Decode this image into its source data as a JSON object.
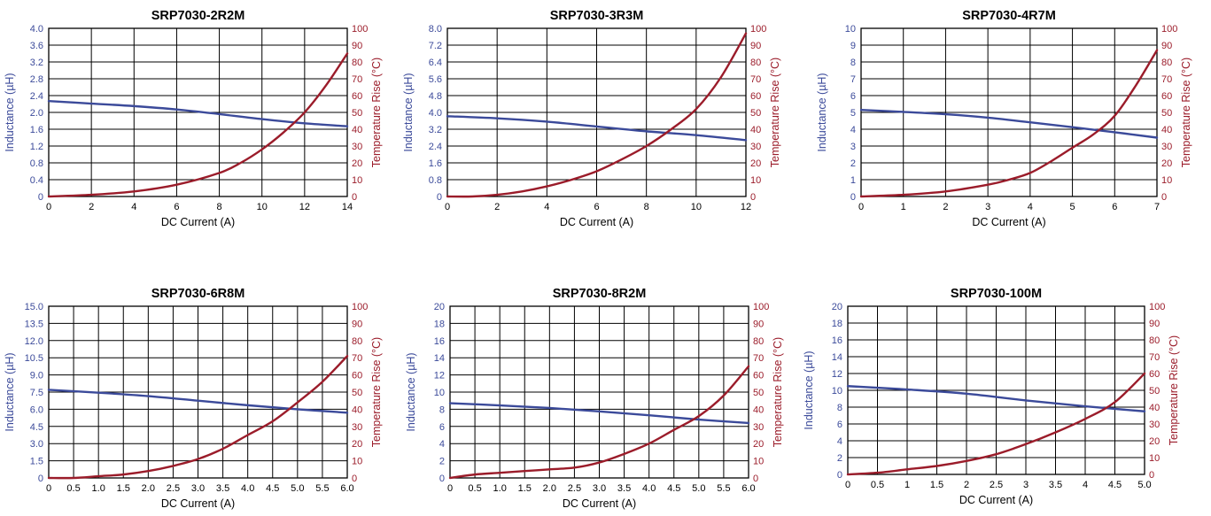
{
  "colors": {
    "inductance": "#3b4a9a",
    "temperature": "#9b1c2a",
    "grid": "#000000"
  },
  "chart_data": [
    {
      "type": "line",
      "title": "SRP7030-2R2M",
      "xlabel": "DC Current (A)",
      "ylabel": "Inductance (µH)",
      "y2label": "Temperature Rise (°C)",
      "xlim": [
        0,
        14
      ],
      "ylim": [
        0,
        4.0
      ],
      "y2lim": [
        0,
        100
      ],
      "xticks": [
        "0",
        "2",
        "4",
        "6",
        "8",
        "10",
        "12",
        "14"
      ],
      "yticks": [
        "0",
        "0.4",
        "0.8",
        "1.2",
        "1.6",
        "2.0",
        "2.4",
        "2.8",
        "3.2",
        "3.6",
        "4.0"
      ],
      "y2ticks": [
        "0",
        "10",
        "20",
        "30",
        "40",
        "50",
        "60",
        "70",
        "80",
        "90",
        "100"
      ],
      "grid": true,
      "series": [
        {
          "axis": "left",
          "color": "#3b4a9a",
          "x": [
            0,
            2,
            4,
            6,
            8,
            10,
            12,
            14
          ],
          "y": [
            2.27,
            2.21,
            2.15,
            2.07,
            1.96,
            1.84,
            1.74,
            1.67
          ]
        },
        {
          "axis": "right",
          "color": "#9b1c2a",
          "x": [
            0,
            2,
            4,
            6,
            8,
            9,
            10,
            11,
            12,
            13,
            14
          ],
          "y": [
            0,
            1,
            3,
            7,
            14,
            20,
            28,
            38,
            50,
            66,
            85
          ]
        }
      ]
    },
    {
      "type": "line",
      "title": "SRP7030-3R3M",
      "xlabel": "DC Current (A)",
      "ylabel": "Inductance (µH)",
      "y2label": "Temperature Rise (°C)",
      "xlim": [
        0,
        12
      ],
      "ylim": [
        0,
        8.0
      ],
      "y2lim": [
        0,
        100
      ],
      "xticks": [
        "0",
        "2",
        "4",
        "6",
        "8",
        "10",
        "12"
      ],
      "yticks": [
        "0",
        "0.8",
        "1.6",
        "2.4",
        "3.2",
        "4.0",
        "4.8",
        "5.6",
        "6.4",
        "7.2",
        "8.0"
      ],
      "y2ticks": [
        "0",
        "10",
        "20",
        "30",
        "40",
        "50",
        "60",
        "70",
        "80",
        "90",
        "100"
      ],
      "grid": true,
      "series": [
        {
          "axis": "left",
          "color": "#3b4a9a",
          "x": [
            0,
            2,
            4,
            6,
            8,
            10,
            12
          ],
          "y": [
            3.82,
            3.72,
            3.56,
            3.33,
            3.1,
            2.92,
            2.68
          ]
        },
        {
          "axis": "right",
          "color": "#9b1c2a",
          "x": [
            0,
            1,
            2,
            3,
            4,
            5,
            6,
            7,
            8,
            9,
            10,
            11,
            12
          ],
          "y": [
            0,
            0,
            1,
            3,
            6,
            10,
            15,
            22,
            30,
            40,
            52,
            71,
            97
          ]
        }
      ]
    },
    {
      "type": "line",
      "title": "SRP7030-4R7M",
      "xlabel": "DC Current (A)",
      "ylabel": "Inductance (µH)",
      "y2label": "Temperature Rise (°C)",
      "xlim": [
        0,
        7
      ],
      "ylim": [
        0,
        10
      ],
      "y2lim": [
        0,
        100
      ],
      "xticks": [
        "0",
        "1",
        "2",
        "3",
        "4",
        "5",
        "6",
        "7"
      ],
      "yticks": [
        "0",
        "1",
        "2",
        "3",
        "4",
        "5",
        "6",
        "7",
        "8",
        "9",
        "10"
      ],
      "y2ticks": [
        "0",
        "10",
        "20",
        "30",
        "40",
        "50",
        "60",
        "70",
        "80",
        "90",
        "100"
      ],
      "grid": true,
      "series": [
        {
          "axis": "left",
          "color": "#3b4a9a",
          "x": [
            0,
            1,
            2,
            3,
            4,
            5,
            6,
            7
          ],
          "y": [
            5.15,
            5.03,
            4.89,
            4.69,
            4.41,
            4.12,
            3.82,
            3.5
          ]
        },
        {
          "axis": "right",
          "color": "#9b1c2a",
          "x": [
            0,
            1,
            2,
            3,
            3.5,
            4,
            4.5,
            5,
            5.5,
            6,
            6.5,
            7
          ],
          "y": [
            0,
            1,
            3,
            7,
            10,
            14,
            21,
            29,
            37,
            48,
            66,
            87
          ]
        }
      ]
    },
    {
      "type": "line",
      "title": "SRP7030-6R8M",
      "xlabel": "DC Current (A)",
      "ylabel": "Inductance (µH)",
      "y2label": "Temperature Rise (°C)",
      "xlim": [
        0,
        6.0
      ],
      "ylim": [
        0,
        15.0
      ],
      "y2lim": [
        0,
        100
      ],
      "xticks": [
        "0",
        "0.5",
        "1.0",
        "1.5",
        "2.0",
        "2.5",
        "3.0",
        "3.5",
        "4.0",
        "4.5",
        "5.0",
        "5.5",
        "6.0"
      ],
      "yticks": [
        "0",
        "1.5",
        "3.0",
        "4.5",
        "6.0",
        "7.5",
        "9.0",
        "10.5",
        "12.0",
        "13.5",
        "15.0"
      ],
      "y2ticks": [
        "0",
        "10",
        "20",
        "30",
        "40",
        "50",
        "60",
        "70",
        "80",
        "90",
        "100"
      ],
      "grid": true,
      "series": [
        {
          "axis": "left",
          "color": "#3b4a9a",
          "x": [
            0,
            1,
            2,
            3,
            4,
            5,
            6
          ],
          "y": [
            7.7,
            7.45,
            7.15,
            6.75,
            6.35,
            6.0,
            5.7
          ]
        },
        {
          "axis": "right",
          "color": "#9b1c2a",
          "x": [
            0,
            0.5,
            1.0,
            1.5,
            2.0,
            2.5,
            3.0,
            3.5,
            4.0,
            4.5,
            5.0,
            5.5,
            6.0
          ],
          "y": [
            0,
            0,
            1,
            2,
            4,
            7,
            11,
            17,
            25,
            33,
            44,
            56,
            71
          ]
        }
      ]
    },
    {
      "type": "line",
      "title": "SRP7030-8R2M",
      "xlabel": "DC Current (A)",
      "ylabel": "Inductance (µH)",
      "y2label": "Temperature Rise (°C)",
      "xlim": [
        0,
        6.0
      ],
      "ylim": [
        0,
        20
      ],
      "y2lim": [
        0,
        100
      ],
      "xticks": [
        "0",
        "0.5",
        "1.0",
        "1.5",
        "2.0",
        "2.5",
        "3.0",
        "3.5",
        "4.0",
        "4.5",
        "5.0",
        "5.5",
        "6.0"
      ],
      "yticks": [
        "0",
        "2",
        "4",
        "6",
        "8",
        "10",
        "12",
        "14",
        "16",
        "18",
        "20"
      ],
      "y2ticks": [
        "0",
        "10",
        "20",
        "30",
        "40",
        "50",
        "60",
        "70",
        "80",
        "90",
        "100"
      ],
      "grid": true,
      "series": [
        {
          "axis": "left",
          "color": "#3b4a9a",
          "x": [
            0,
            1,
            2,
            3,
            4,
            5,
            6
          ],
          "y": [
            8.7,
            8.45,
            8.15,
            7.75,
            7.3,
            6.8,
            6.4
          ]
        },
        {
          "axis": "right",
          "color": "#9b1c2a",
          "x": [
            0,
            0.5,
            1.0,
            1.5,
            2.0,
            2.5,
            3.0,
            3.5,
            4.0,
            4.5,
            5.0,
            5.5,
            6.0
          ],
          "y": [
            0,
            2,
            3,
            4,
            5,
            6,
            9,
            14,
            20,
            28,
            36,
            48,
            65
          ]
        }
      ]
    },
    {
      "type": "line",
      "title": "SRP7030-100M",
      "xlabel": "DC Current (A)",
      "ylabel": "Inductance (µH)",
      "y2label": "Temperature Rise (°C)",
      "xlim": [
        0,
        5.0
      ],
      "ylim": [
        0,
        20
      ],
      "y2lim": [
        0,
        100
      ],
      "xticks": [
        "0",
        "0.5",
        "1",
        "1.5",
        "2",
        "2.5",
        "3",
        "3.5",
        "4",
        "4.5",
        "5.0"
      ],
      "yticks": [
        "0",
        "2",
        "4",
        "6",
        "8",
        "10",
        "12",
        "14",
        "16",
        "18",
        "20"
      ],
      "y2ticks": [
        "0",
        "10",
        "20",
        "30",
        "40",
        "50",
        "60",
        "70",
        "80",
        "90",
        "100"
      ],
      "grid": true,
      "series": [
        {
          "axis": "left",
          "color": "#3b4a9a",
          "x": [
            0,
            1,
            2,
            3,
            4,
            5
          ],
          "y": [
            10.5,
            10.1,
            9.6,
            8.8,
            8.1,
            7.5
          ]
        },
        {
          "axis": "right",
          "color": "#9b1c2a",
          "x": [
            0,
            0.5,
            1,
            1.5,
            2,
            2.5,
            3,
            3.5,
            4,
            4.5,
            5
          ],
          "y": [
            0,
            1,
            3,
            5,
            8,
            12,
            18,
            25,
            33,
            43,
            60
          ]
        }
      ]
    }
  ]
}
